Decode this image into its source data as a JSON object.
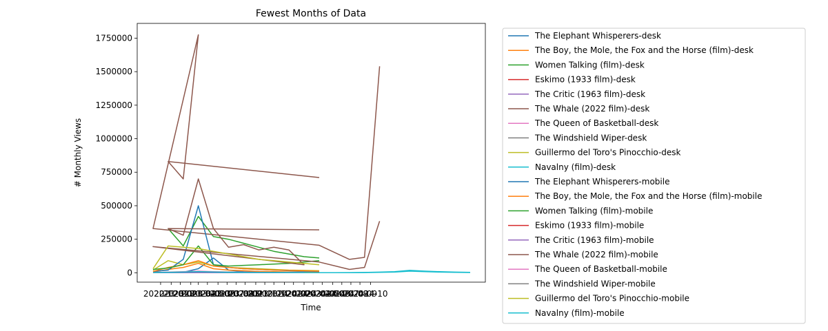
{
  "chart_data": {
    "type": "line",
    "title": "Fewest Months of Data",
    "xlabel": "Time",
    "ylabel": "# Monthly Views",
    "ylim": [
      -70000,
      1860000
    ],
    "yticks": [
      0,
      250000,
      500000,
      750000,
      1000000,
      1250000,
      1500000,
      1750000
    ],
    "ytick_labels": [
      "0",
      "250000",
      "500000",
      "750000",
      "1000000",
      "1250000",
      "1500000",
      "1750000"
    ],
    "xlim": [
      0,
      21
    ],
    "xtick_labels": [
      "2022-12",
      "2023-01",
      "2023-02",
      "2023-03",
      "2023-04",
      "2023-05",
      "2023-06",
      "2023-07",
      "2023-08",
      "2023-09",
      "2023-10",
      "2023-11",
      "2023-12",
      "2024-01",
      "2024-02",
      "2024-03",
      "2024-04",
      "2024-05",
      "2024-06",
      "2024-07",
      "2024-08",
      "2024-09",
      "2024-10"
    ],
    "xticks": [
      0.5,
      1.2,
      1.8,
      2.5,
      3.0,
      3.6,
      4.3,
      4.9,
      5.5,
      6.1,
      6.8,
      7.4,
      8.0,
      8.7,
      9.3,
      10.0,
      10.6,
      11.2,
      11.9,
      12.5,
      13.1,
      13.7,
      14.4
    ],
    "legend_position": "outside-right",
    "series": [
      {
        "name": "The Elephant Whisperers-desk",
        "color": "#1f77b4",
        "x": [
          1,
          2,
          3,
          4,
          5,
          6,
          7,
          8,
          9,
          10,
          11
        ],
        "y": [
          2000,
          4000,
          30000,
          110000,
          20000,
          8000,
          6000,
          5000,
          4000,
          3000,
          2000
        ]
      },
      {
        "name": "The Boy, the Mole, the Fox and the Horse (film)-desk",
        "color": "#ff7f0e",
        "x": [
          0,
          1,
          2,
          3,
          4,
          5,
          6,
          7,
          8,
          9,
          10,
          11
        ],
        "y": [
          5000,
          25000,
          40000,
          70000,
          30000,
          20000,
          15000,
          10000,
          8000,
          6000,
          5000,
          4000
        ]
      },
      {
        "name": "Women Talking (film)-desk",
        "color": "#2ca02c",
        "x": [
          1,
          2,
          3,
          4,
          5,
          6,
          7,
          8,
          9,
          10,
          11
        ],
        "y": [
          330000,
          200000,
          420000,
          270000,
          250000,
          220000,
          190000,
          160000,
          140000,
          120000,
          110000
        ]
      },
      {
        "name": "Eskimo (1933 film)-desk",
        "color": "#d62728",
        "x": [
          0,
          1,
          2,
          3,
          4,
          5,
          6,
          7,
          8,
          9,
          10
        ],
        "y": [
          1000,
          1500,
          2000,
          2500,
          2000,
          1800,
          1500,
          1200,
          1000,
          900,
          800
        ]
      },
      {
        "name": "The Critic (1963 film)-desk",
        "color": "#9467bd",
        "x": [
          0,
          1,
          2,
          3,
          4,
          5,
          6,
          7,
          8,
          9,
          10
        ],
        "y": [
          500,
          800,
          1000,
          1500,
          1200,
          1000,
          900,
          800,
          700,
          600,
          500
        ]
      },
      {
        "name": "The Whale (2022 film)-desk",
        "color": "#8c564b",
        "x": [
          11,
          1,
          2,
          3,
          0,
          11,
          13,
          14,
          15
        ],
        "y": [
          710000,
          830000,
          700000,
          1775000,
          330000,
          205000,
          100000,
          115000,
          1540000
        ]
      },
      {
        "name": "The Queen of Basketball-desk",
        "color": "#e377c2",
        "x": [
          0,
          1,
          2,
          3,
          4,
          5,
          6,
          7,
          8,
          9,
          10
        ],
        "y": [
          2000,
          3000,
          5000,
          8000,
          6000,
          4000,
          3000,
          2500,
          2000,
          1800,
          1500
        ]
      },
      {
        "name": "The Windshield Wiper-desk",
        "color": "#7f7f7f",
        "x": [
          0,
          1,
          2,
          3,
          4,
          5,
          6,
          7,
          8,
          9,
          10
        ],
        "y": [
          1500,
          2500,
          4000,
          6000,
          4000,
          3000,
          2500,
          2000,
          1800,
          1500,
          1200
        ]
      },
      {
        "name": "Guillermo del Toro's Pinocchio-desk",
        "color": "#bcbd22",
        "x": [
          0,
          1,
          2,
          3,
          4,
          5,
          6,
          7,
          8,
          9,
          10,
          11
        ],
        "y": [
          20000,
          90000,
          60000,
          80000,
          50000,
          40000,
          35000,
          30000,
          25000,
          20000,
          18000,
          15000
        ]
      },
      {
        "name": "Navalny (film)-desk",
        "color": "#17becf",
        "x": [
          0,
          1,
          2,
          3,
          4,
          5,
          6,
          7,
          8,
          9,
          10,
          11,
          12,
          13,
          14,
          15,
          16,
          17,
          18,
          19,
          20,
          21
        ],
        "y": [
          1000,
          2000,
          3000,
          5000,
          3000,
          2000,
          1500,
          1200,
          1000,
          900,
          800,
          700,
          600,
          800,
          1500,
          3000,
          5000,
          12000,
          8000,
          5000,
          3000,
          2000
        ]
      },
      {
        "name": "The Elephant Whisperers-mobile",
        "color": "#1f77b4",
        "x": [
          0,
          1,
          2,
          3,
          4,
          5,
          6,
          7,
          8,
          9,
          10,
          11
        ],
        "y": [
          10000,
          20000,
          100000,
          500000,
          60000,
          40000,
          30000,
          25000,
          20000,
          15000,
          12000,
          10000
        ]
      },
      {
        "name": "The Boy, the Mole, the Fox and the Horse (film)-mobile",
        "color": "#ff7f0e",
        "x": [
          0,
          1,
          2,
          3,
          4,
          5,
          6,
          7,
          8,
          9,
          10,
          11
        ],
        "y": [
          10000,
          40000,
          60000,
          90000,
          50000,
          40000,
          30000,
          25000,
          20000,
          18000,
          15000,
          12000
        ]
      },
      {
        "name": "Women Talking (film)-mobile",
        "color": "#2ca02c",
        "x": [
          0,
          1,
          2,
          3,
          4,
          5,
          6,
          7,
          8,
          9,
          10,
          11
        ],
        "y": [
          25000,
          35000,
          60000,
          200000,
          60000,
          50000,
          55000,
          60000,
          65000,
          70000,
          80000,
          90000
        ]
      },
      {
        "name": "Eskimo (1933 film)-mobile",
        "color": "#d62728",
        "x": [
          0,
          1,
          2,
          3,
          4,
          5,
          6,
          7,
          8,
          9,
          10
        ],
        "y": [
          1000,
          2000,
          3000,
          4000,
          3000,
          2500,
          2000,
          1500,
          1200,
          1000,
          900
        ]
      },
      {
        "name": "The Critic (1963 film)-mobile",
        "color": "#9467bd",
        "x": [
          0,
          1,
          2,
          3,
          4,
          5,
          6,
          7,
          8,
          9,
          10
        ],
        "y": [
          800,
          1000,
          1500,
          2000,
          1500,
          1200,
          1000,
          900,
          800,
          700,
          600
        ]
      },
      {
        "name": "The Whale (2022 film)-mobile",
        "color": "#8c564b",
        "x": [
          11,
          1,
          2,
          3,
          4,
          5,
          6,
          7,
          8,
          9,
          10,
          0,
          11,
          13,
          14,
          15
        ],
        "y": [
          320000,
          330000,
          280000,
          700000,
          330000,
          190000,
          210000,
          170000,
          190000,
          170000,
          60000,
          195000,
          80000,
          25000,
          40000,
          385000
        ]
      },
      {
        "name": "The Queen of Basketball-mobile",
        "color": "#e377c2",
        "x": [
          0,
          1,
          2,
          3,
          4,
          5,
          6,
          7,
          8,
          9,
          10
        ],
        "y": [
          3000,
          5000,
          8000,
          12000,
          8000,
          6000,
          5000,
          4000,
          3500,
          3000,
          2500
        ]
      },
      {
        "name": "The Windshield Wiper-mobile",
        "color": "#7f7f7f",
        "x": [
          0,
          1,
          2,
          3,
          4,
          5,
          6,
          7,
          8,
          9,
          10
        ],
        "y": [
          2000,
          4000,
          6000,
          9000,
          6000,
          5000,
          4000,
          3500,
          3000,
          2500,
          2000
        ]
      },
      {
        "name": "Guillermo del Toro's Pinocchio-mobile",
        "color": "#bcbd22",
        "x": [
          0,
          1,
          2,
          3,
          4,
          5,
          6,
          7,
          8,
          9,
          10,
          11
        ],
        "y": [
          30000,
          200000,
          190000,
          180000,
          160000,
          140000,
          120000,
          100000,
          90000,
          80000,
          70000,
          60000
        ]
      },
      {
        "name": "Navalny (film)-mobile",
        "color": "#17becf",
        "x": [
          0,
          1,
          2,
          3,
          4,
          5,
          6,
          7,
          8,
          9,
          10,
          11,
          12,
          13,
          14,
          15,
          16,
          17,
          18,
          19,
          20,
          21
        ],
        "y": [
          2000,
          3000,
          5000,
          8000,
          5000,
          3000,
          2500,
          2000,
          1800,
          1500,
          1200,
          1000,
          900,
          1200,
          2500,
          5000,
          8000,
          18000,
          12000,
          8000,
          5000,
          3000
        ]
      }
    ]
  }
}
